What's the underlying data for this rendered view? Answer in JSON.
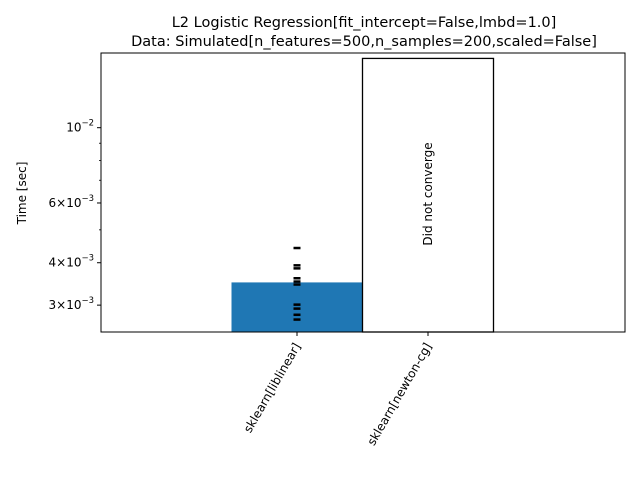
{
  "chart_data": {
    "type": "bar",
    "title": "L2 Logistic Regression[fit_intercept=False,lmbd=1.0]",
    "subtitle": "Data: Simulated[n_features=500,n_samples=200,scaled=False]",
    "ylabel": "Time [sec]",
    "xlabel": "",
    "yscale": "log",
    "ylim": [
      0.0025,
      0.0166
    ],
    "grid": false,
    "categories": [
      "sklearn[liblinear]",
      "sklearn[newton-cg]"
    ],
    "bars": [
      {
        "category": "sklearn[liblinear]",
        "value": 0.0035,
        "fill": "#1f77b4",
        "edge": "#1f77b4",
        "annotation": "",
        "runs": [
          0.00442,
          0.00393,
          0.00385,
          0.0036,
          0.00352,
          0.00345,
          0.00301,
          0.00293,
          0.00281,
          0.00272
        ]
      },
      {
        "category": "sklearn[newton-cg]",
        "value": 0.016,
        "fill": "#ffffff",
        "edge": "#000000",
        "annotation": "Did not converge",
        "runs": []
      }
    ],
    "yticks_major": [
      {
        "value": 0.003,
        "mantissa": "3",
        "base": "10",
        "exponent": "−3"
      },
      {
        "value": 0.004,
        "mantissa": "4",
        "base": "10",
        "exponent": "−3"
      },
      {
        "value": 0.006,
        "mantissa": "6",
        "base": "10",
        "exponent": "−3"
      },
      {
        "value": 0.01,
        "mantissa": "",
        "base": "10",
        "exponent": "−2"
      }
    ],
    "yticks_minor": [
      0.005,
      0.007,
      0.008,
      0.009
    ]
  },
  "colors": {
    "bar_primary": "#1f77b4",
    "axes": "#000000",
    "background": "#ffffff"
  }
}
